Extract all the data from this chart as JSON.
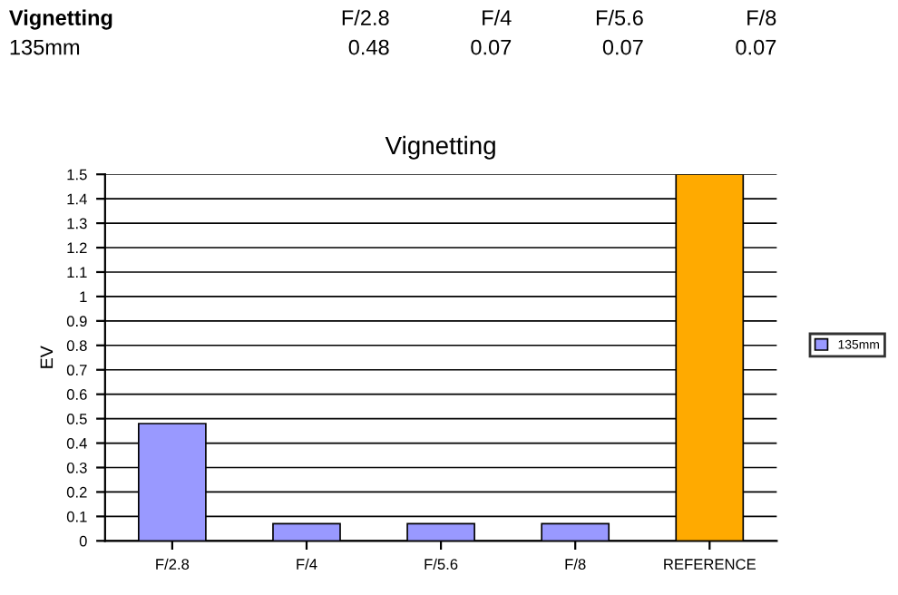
{
  "chart_data": [
    {
      "type": "other",
      "annotations": [
        "Vignetting",
        "F/2.8",
        "F/4",
        "F/5.6",
        "F/8",
        "135mm",
        "0.48",
        "0.07",
        "0.07",
        "0.07"
      ]
    },
    {
      "type": "bar",
      "title": "Vignetting",
      "ylabel": "EV",
      "categories": [
        "F/2.8",
        "F/4",
        "F/5.6",
        "F/8",
        "REFERENCE"
      ],
      "series": [
        {
          "name": "135mm",
          "color": "#9999ff",
          "colors": [
            "#9999ff",
            "#9999ff",
            "#9999ff",
            "#9999ff",
            "#ffaa00"
          ],
          "values": [
            0.48,
            0.07,
            0.07,
            0.07,
            1.5
          ]
        }
      ],
      "ylim": [
        0,
        1.5
      ],
      "yticks": [
        0,
        0.1,
        0.2,
        0.3,
        0.4,
        0.5,
        0.6,
        0.7,
        0.8,
        0.9,
        1,
        1.1,
        1.2,
        1.3,
        1.4,
        1.5
      ],
      "grid": "y",
      "legend": "right"
    }
  ]
}
